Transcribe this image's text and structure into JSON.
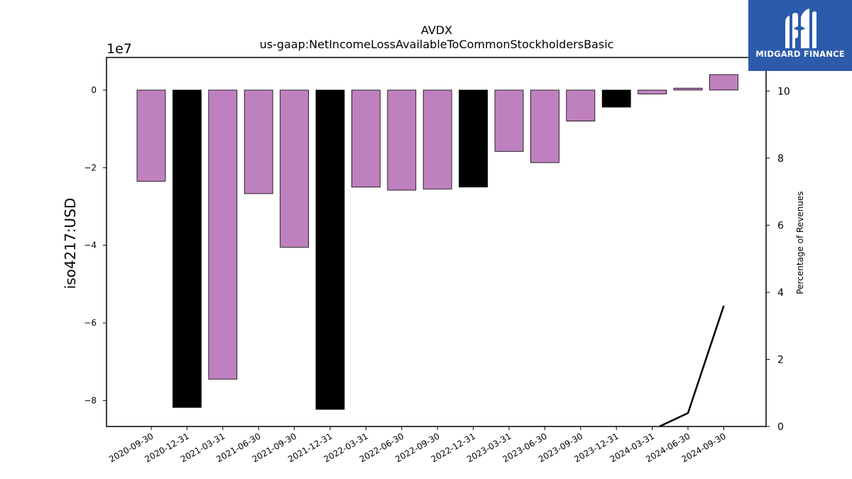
{
  "logo": {
    "text": "MIDGARD FINANCE",
    "icon": "midgard-m-logo-icon",
    "background": "#2c5bab"
  },
  "chart_data": {
    "type": "bar",
    "title": "AVDX",
    "subtitle": "us-gaap:NetIncomeLossAvailableToCommonStockholdersBasic",
    "ylabel": "iso4217:USD",
    "y_offset_label": "1e7",
    "y2label": "Percentage of Revenues",
    "categories": [
      "2020-09-30",
      "2020-12-31",
      "2021-03-31",
      "2021-06-30",
      "2021-09-30",
      "2021-12-31",
      "2022-03-31",
      "2022-06-30",
      "2022-09-30",
      "2022-12-31",
      "2023-03-31",
      "2023-06-30",
      "2023-09-30",
      "2023-12-31",
      "2024-03-31",
      "2024-06-30",
      "2024-09-30"
    ],
    "series": [
      {
        "type": "bar",
        "values": [
          -23500000.0,
          -81800000.0,
          -74500000.0,
          -26700000.0,
          -40500000.0,
          -82300000.0,
          -25000000.0,
          -25800000.0,
          -25500000.0,
          -25000000.0,
          -15800000.0,
          -18700000.0,
          -8000000.0,
          -4400000.0,
          -1000000.0,
          500000.0,
          4000000.0
        ],
        "colors": [
          "#bf80bf",
          "#000000",
          "#bf80bf",
          "#bf80bf",
          "#bf80bf",
          "#000000",
          "#bf80bf",
          "#bf80bf",
          "#bf80bf",
          "#000000",
          "#bf80bf",
          "#bf80bf",
          "#bf80bf",
          "#000000",
          "#bf80bf",
          "#bf80bf",
          "#bf80bf"
        ]
      },
      {
        "type": "line",
        "axis": "right",
        "color": "#000000",
        "x": [
          "2024-03-31",
          "2024-06-30",
          "2024-09-30"
        ],
        "values": [
          -0.1,
          0.4,
          3.6
        ]
      }
    ],
    "ylim": [
      -86700000.0,
      8400000.0
    ],
    "yticks": [
      0,
      -2,
      -4,
      -6,
      -8
    ],
    "ytick_labels": [
      "0",
      "−2",
      "−4",
      "−6",
      "−8"
    ],
    "y2lim": [
      0,
      11.0
    ],
    "y2ticks": [
      0,
      2,
      4,
      6,
      8,
      10
    ],
    "y2tick_labels": [
      "0",
      "2",
      "4",
      "6",
      "8",
      "10"
    ],
    "grid": false,
    "legend": "none"
  }
}
